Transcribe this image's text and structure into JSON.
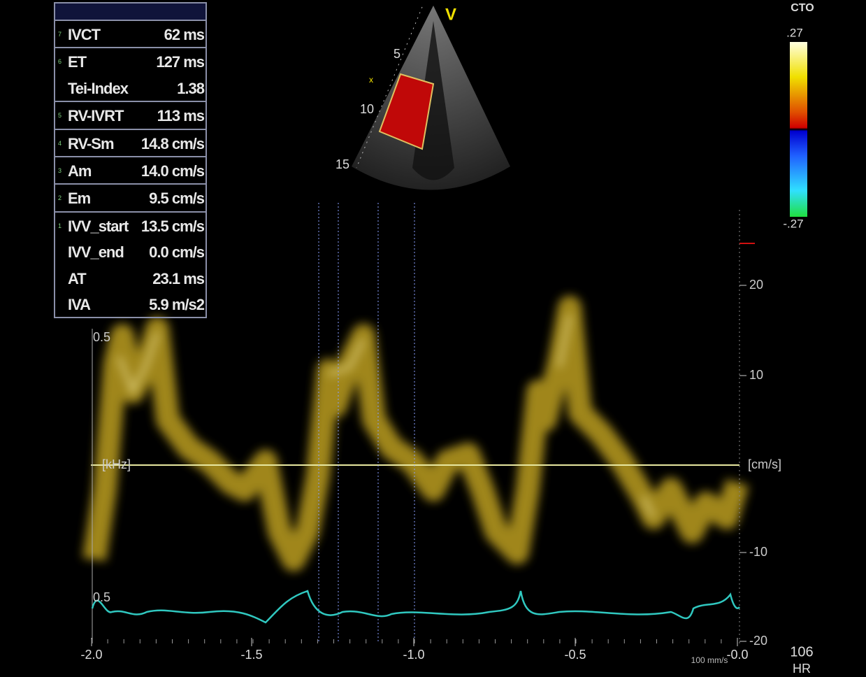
{
  "panel": {
    "groups": [
      {
        "index": "7",
        "rows": [
          {
            "label": "IVCT",
            "value": "62 ms"
          }
        ]
      },
      {
        "index": "6",
        "rows": [
          {
            "label": "ET",
            "value": "127 ms"
          },
          {
            "label": "Tei-Index",
            "value": "1.38"
          }
        ]
      },
      {
        "index": "5",
        "rows": [
          {
            "label": "RV-IVRT",
            "value": "113 ms"
          }
        ]
      },
      {
        "index": "4",
        "rows": [
          {
            "label": "RV-Sm",
            "value": "14.8 cm/s"
          }
        ]
      },
      {
        "index": "3",
        "rows": [
          {
            "label": "Am",
            "value": "14.0 cm/s"
          }
        ]
      },
      {
        "index": "2",
        "rows": [
          {
            "label": "Em",
            "value": "9.5 cm/s"
          }
        ]
      },
      {
        "index": "1",
        "rows": [
          {
            "label": "IVV_start",
            "value": "13.5 cm/s"
          },
          {
            "label": "IVV_end",
            "value": "0.0 cm/s"
          },
          {
            "label": "AT",
            "value": "23.1 ms"
          },
          {
            "label": "IVA",
            "value": "5.9 m/s2"
          }
        ]
      }
    ]
  },
  "sector": {
    "label": "V",
    "depth_marks": [
      "5",
      "10",
      "15"
    ],
    "marker": "x"
  },
  "color_bar": {
    "mode": "CTO",
    "max": ".27",
    "min": "-.27"
  },
  "doppler": {
    "velocity_ticks": [
      "20",
      "10",
      "-10",
      "-20"
    ],
    "velocity_unit": "[cm/s]",
    "frequency_labels": [
      "0.5",
      "0.5"
    ],
    "frequency_unit": "[kHz]",
    "time_ticks": [
      "-2.0",
      "-1.5",
      "-1.0",
      "-0.5",
      "-0.0"
    ],
    "sweep_speed": "100 mm/s"
  },
  "heart_rate": {
    "value": "106",
    "label": "HR"
  }
}
